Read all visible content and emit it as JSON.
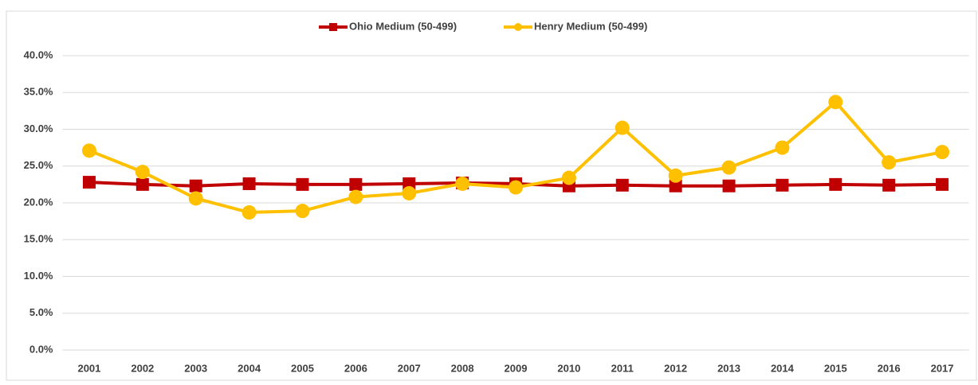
{
  "chart_data": {
    "type": "line",
    "categories": [
      "2001",
      "2002",
      "2003",
      "2004",
      "2005",
      "2006",
      "2007",
      "2008",
      "2009",
      "2010",
      "2011",
      "2012",
      "2013",
      "2014",
      "2015",
      "2016",
      "2017"
    ],
    "series": [
      {
        "name": "Ohio Medium (50-499)",
        "color": "#c00000",
        "marker": "square",
        "values": [
          22.8,
          22.5,
          22.3,
          22.6,
          22.5,
          22.5,
          22.6,
          22.7,
          22.6,
          22.3,
          22.4,
          22.3,
          22.3,
          22.4,
          22.5,
          22.4,
          22.5
        ]
      },
      {
        "name": "Henry  Medium (50-499)",
        "color": "#ffc000",
        "marker": "circle",
        "values": [
          27.1,
          24.2,
          20.6,
          18.7,
          18.9,
          20.8,
          21.3,
          22.6,
          22.1,
          23.4,
          30.2,
          23.7,
          24.8,
          27.5,
          33.7,
          25.5,
          26.9
        ]
      }
    ],
    "ylim": [
      0,
      40
    ],
    "yticks": [
      {
        "value": 0,
        "label": "0.0%"
      },
      {
        "value": 5,
        "label": "5.0%"
      },
      {
        "value": 10,
        "label": "10.0%"
      },
      {
        "value": 15,
        "label": "15.0%"
      },
      {
        "value": 20,
        "label": "20.0%"
      },
      {
        "value": 25,
        "label": "25.0%"
      },
      {
        "value": 30,
        "label": "30.0%"
      },
      {
        "value": 35,
        "label": "35.0%"
      },
      {
        "value": 40,
        "label": "40.0%"
      }
    ],
    "grid": true,
    "legend": "top"
  }
}
